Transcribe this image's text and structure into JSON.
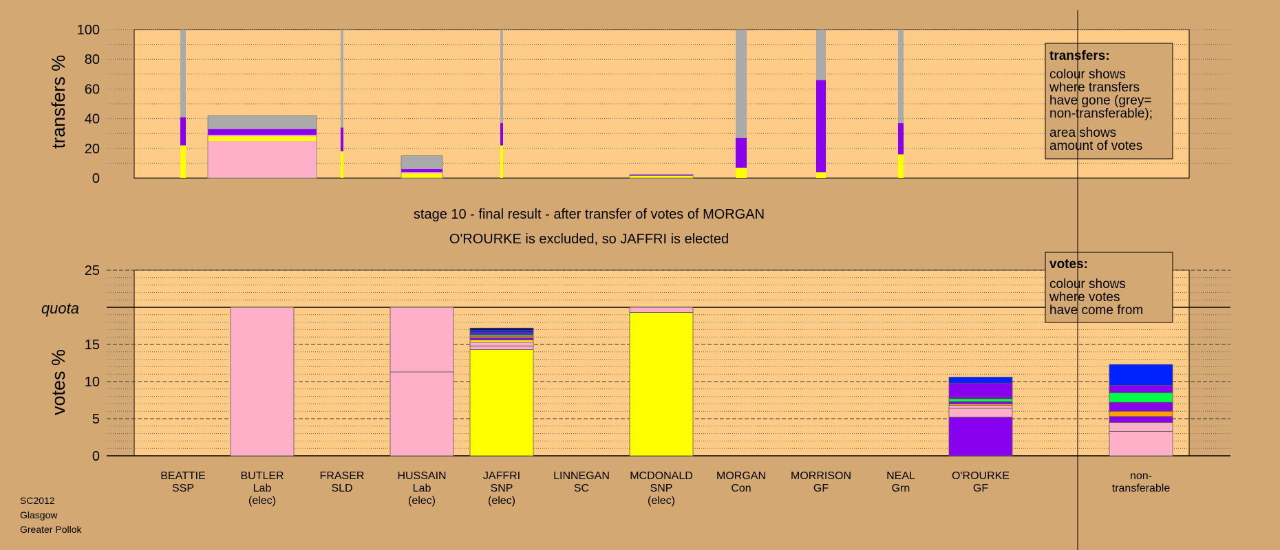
{
  "colors": {
    "background": "#D4A872",
    "plot_fill": "#FFCC88",
    "non_transferable": "#AAAAAA"
  },
  "captions": {
    "stage": "stage 10 - final result - after transfer of votes of MORGAN",
    "outcome": "O'ROURKE is excluded, so JAFFRI is elected"
  },
  "footer": {
    "line1": "SC2012",
    "line2": "Glasgow",
    "line3": "Greater Pollok"
  },
  "legend_transfers": {
    "title": "transfers:",
    "lines": [
      "colour shows",
      "where transfers",
      "have gone (grey=",
      "non-transferable);",
      "area shows",
      "amount of votes"
    ]
  },
  "legend_votes": {
    "title": "votes:",
    "lines": [
      "colour shows",
      "where votes",
      "have come from"
    ]
  },
  "chart_data": [
    {
      "type": "bar",
      "subtype": "stacked-variable-width",
      "ylabel": "transfers %",
      "ylim": [
        0,
        100
      ],
      "yticks": [
        0,
        20,
        40,
        60,
        80,
        100
      ],
      "grid": true,
      "legend_position": "top-right",
      "categories": [
        "BEATTIE",
        "BUTLER",
        "FRASER",
        "HUSSAIN",
        "JAFFRI",
        "LINNEGAN",
        "MCDONALD",
        "MORGAN",
        "MORRISON",
        "NEAL",
        "O'ROURKE"
      ],
      "bars": [
        {
          "candidate": "BEATTIE",
          "segments": [
            {
              "color": "#FFFF00",
              "value": 22
            },
            {
              "color": "#8800EE",
              "value": 19
            },
            {
              "color": "#AAAAAA",
              "value": 59
            }
          ]
        },
        {
          "candidate": "BUTLER",
          "segments": [
            {
              "color": "#FFB0C8",
              "value": 25
            },
            {
              "color": "#FFFF00",
              "value": 3
            },
            {
              "color": "#FFB0C8",
              "value": 1
            },
            {
              "color": "#8800EE",
              "value": 4
            },
            {
              "color": "#AAAAAA",
              "value": 9
            }
          ]
        },
        {
          "candidate": "FRASER",
          "segments": [
            {
              "color": "#FFFF00",
              "value": 18
            },
            {
              "color": "#8800EE",
              "value": 16
            },
            {
              "color": "#AAAAAA",
              "value": 66
            }
          ]
        },
        {
          "candidate": "HUSSAIN",
          "segments": [
            {
              "color": "#FFFF00",
              "value": 3
            },
            {
              "color": "#FFB0C8",
              "value": 1
            },
            {
              "color": "#8800EE",
              "value": 2
            },
            {
              "color": "#AAAAAA",
              "value": 9
            }
          ]
        },
        {
          "candidate": "JAFFRI",
          "segments": [
            {
              "color": "#FFFF00",
              "value": 22
            },
            {
              "color": "#8800EE",
              "value": 15
            },
            {
              "color": "#AAAAAA",
              "value": 63
            }
          ]
        },
        {
          "candidate": "LINNEGAN",
          "segments": []
        },
        {
          "candidate": "MCDONALD",
          "segments": [
            {
              "color": "#FFFF00",
              "value": 1.5
            },
            {
              "color": "#8800EE",
              "value": 0.5
            },
            {
              "color": "#AAAAAA",
              "value": 0.5
            }
          ]
        },
        {
          "candidate": "MORGAN",
          "segments": [
            {
              "color": "#FFFF00",
              "value": 7
            },
            {
              "color": "#8800EE",
              "value": 20
            },
            {
              "color": "#AAAAAA",
              "value": 73
            }
          ]
        },
        {
          "candidate": "MORRISON",
          "segments": [
            {
              "color": "#FFFF00",
              "value": 4
            },
            {
              "color": "#8800EE",
              "value": 62
            },
            {
              "color": "#AAAAAA",
              "value": 34
            }
          ]
        },
        {
          "candidate": "NEAL",
          "segments": [
            {
              "color": "#FFFF00",
              "value": 16
            },
            {
              "color": "#8800EE",
              "value": 21
            },
            {
              "color": "#AAAAAA",
              "value": 63
            }
          ]
        },
        {
          "candidate": "O'ROURKE",
          "segments": []
        }
      ]
    },
    {
      "type": "bar",
      "subtype": "stacked",
      "ylabel": "votes %",
      "ylim": [
        0,
        25
      ],
      "yticks": [
        0,
        5,
        10,
        15,
        20,
        25
      ],
      "quota": 20,
      "quota_label": "quota",
      "grid": true,
      "legend_position": "top-right",
      "categories": [
        {
          "name": "BEATTIE",
          "party": "SSP",
          "status": ""
        },
        {
          "name": "BUTLER",
          "party": "Lab",
          "status": "(elec)"
        },
        {
          "name": "FRASER",
          "party": "SLD",
          "status": ""
        },
        {
          "name": "HUSSAIN",
          "party": "Lab",
          "status": "(elec)"
        },
        {
          "name": "JAFFRI",
          "party": "SNP",
          "status": "(elec)"
        },
        {
          "name": "LINNEGAN",
          "party": "SC",
          "status": ""
        },
        {
          "name": "MCDONALD",
          "party": "SNP",
          "status": "(elec)"
        },
        {
          "name": "MORGAN",
          "party": "Con",
          "status": ""
        },
        {
          "name": "MORRISON",
          "party": "GF",
          "status": ""
        },
        {
          "name": "NEAL",
          "party": "Grn",
          "status": ""
        },
        {
          "name": "O'ROURKE",
          "party": "GF",
          "status": ""
        },
        {
          "name": "non-",
          "party": "transferable",
          "status": ""
        }
      ],
      "bars": [
        {
          "candidate": "BEATTIE",
          "segments": []
        },
        {
          "candidate": "BUTLER",
          "segments": [
            {
              "color": "#FFB0C8",
              "value": 20
            }
          ]
        },
        {
          "candidate": "FRASER",
          "segments": []
        },
        {
          "candidate": "HUSSAIN",
          "segments": [
            {
              "color": "#FFB0C8",
              "value": 11.3
            },
            {
              "color": "#FFB0C8",
              "value": 8.7
            }
          ]
        },
        {
          "candidate": "JAFFRI",
          "segments": [
            {
              "color": "#FFFF00",
              "value": 14.3
            },
            {
              "color": "#FFB0C8",
              "value": 0.5
            },
            {
              "color": "#FFB0C8",
              "value": 0.5
            },
            {
              "color": "#FFFF00",
              "value": 0.3
            },
            {
              "color": "#8800EE",
              "value": 0.3
            },
            {
              "color": "#FFA000",
              "value": 0.2
            },
            {
              "color": "#00FF44",
              "value": 0.2
            },
            {
              "color": "#8800EE",
              "value": 0.3
            },
            {
              "color": "#0022FF",
              "value": 0.3
            },
            {
              "color": "#001166",
              "value": 0.3
            }
          ]
        },
        {
          "candidate": "LINNEGAN",
          "segments": []
        },
        {
          "candidate": "MCDONALD",
          "segments": [
            {
              "color": "#FFFF00",
              "value": 19.3
            },
            {
              "color": "#FFB0C8",
              "value": 0.7
            }
          ]
        },
        {
          "candidate": "MORGAN",
          "segments": []
        },
        {
          "candidate": "MORRISON",
          "segments": []
        },
        {
          "candidate": "NEAL",
          "segments": []
        },
        {
          "candidate": "O'ROURKE",
          "segments": [
            {
              "color": "#8800EE",
              "value": 5.2
            },
            {
              "color": "#FFB0C8",
              "value": 1.2
            },
            {
              "color": "#FFB0C8",
              "value": 0.4
            },
            {
              "color": "#FFA000",
              "value": 0.2
            },
            {
              "color": "#8800EE",
              "value": 0.3
            },
            {
              "color": "#00FF44",
              "value": 0.4
            },
            {
              "color": "#8800EE",
              "value": 0.3
            },
            {
              "color": "#8800EE",
              "value": 1.8
            },
            {
              "color": "#0022FF",
              "value": 0.8
            }
          ]
        },
        {
          "candidate": "non-transferable",
          "segments": [
            {
              "color": "#FFB0C8",
              "value": 3.3
            },
            {
              "color": "#FFB0C8",
              "value": 1.2
            },
            {
              "color": "#8800EE",
              "value": 0.8
            },
            {
              "color": "#FFA000",
              "value": 0.7
            },
            {
              "color": "#8800EE",
              "value": 1.2
            },
            {
              "color": "#00FF44",
              "value": 1.3
            },
            {
              "color": "#8800EE",
              "value": 1.0
            },
            {
              "color": "#0022FF",
              "value": 2.8
            }
          ]
        }
      ]
    }
  ]
}
